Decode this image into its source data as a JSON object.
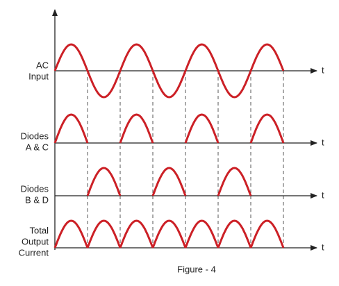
{
  "waveforms": [
    {
      "label": [
        "AC",
        "Input"
      ],
      "axis_label": "t"
    },
    {
      "label": [
        "Diodes",
        "A & C"
      ],
      "axis_label": "t"
    },
    {
      "label": [
        "Diodes",
        "B & D"
      ],
      "axis_label": "t"
    },
    {
      "label": [
        "Total",
        "Output",
        "Current"
      ],
      "axis_label": "t"
    }
  ],
  "caption": "Figure - 4"
}
